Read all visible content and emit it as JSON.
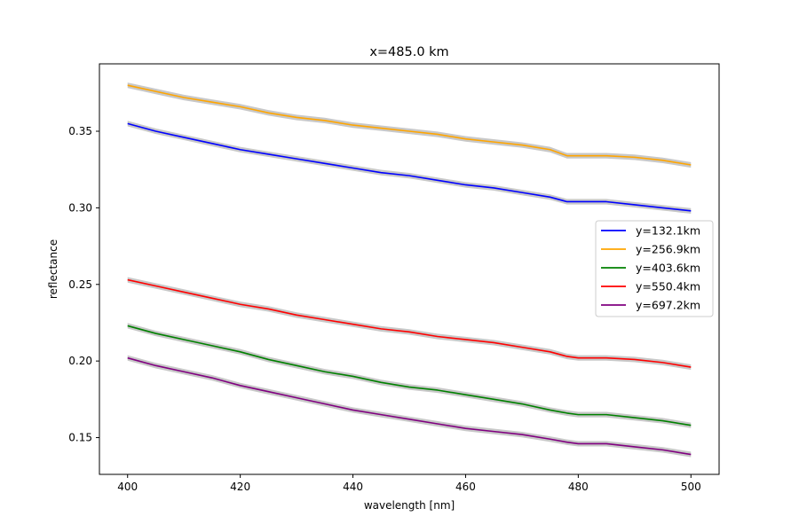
{
  "chart_data": {
    "type": "line",
    "title": "x=485.0 km",
    "xlabel": "wavelength [nm]",
    "ylabel": "reflectance",
    "xlim": [
      395,
      505
    ],
    "ylim": [
      0.126,
      0.394
    ],
    "xticks": [
      400,
      420,
      440,
      460,
      480,
      500
    ],
    "yticks": [
      0.15,
      0.2,
      0.25,
      0.3,
      0.35
    ],
    "grid": false,
    "legend_position": "center-right",
    "band_color": "#c8c8c8",
    "x": [
      400,
      405,
      410,
      415,
      420,
      425,
      430,
      435,
      440,
      445,
      450,
      455,
      460,
      465,
      470,
      475,
      478,
      480,
      485,
      490,
      495,
      500
    ],
    "series": [
      {
        "name": "y=132.1km",
        "color": "#0000ff",
        "values": [
          0.355,
          0.35,
          0.346,
          0.342,
          0.338,
          0.335,
          0.332,
          0.329,
          0.326,
          0.323,
          0.321,
          0.318,
          0.315,
          0.313,
          0.31,
          0.307,
          0.304,
          0.304,
          0.304,
          0.302,
          0.3,
          0.298
        ]
      },
      {
        "name": "y=256.9km",
        "color": "#ffa500",
        "values": [
          0.38,
          0.376,
          0.372,
          0.369,
          0.366,
          0.362,
          0.359,
          0.357,
          0.354,
          0.352,
          0.35,
          0.348,
          0.345,
          0.343,
          0.341,
          0.338,
          0.334,
          0.334,
          0.334,
          0.333,
          0.331,
          0.328
        ]
      },
      {
        "name": "y=403.6km",
        "color": "#008000",
        "values": [
          0.223,
          0.218,
          0.214,
          0.21,
          0.206,
          0.201,
          0.197,
          0.193,
          0.19,
          0.186,
          0.183,
          0.181,
          0.178,
          0.175,
          0.172,
          0.168,
          0.166,
          0.165,
          0.165,
          0.163,
          0.161,
          0.158
        ]
      },
      {
        "name": "y=550.4km",
        "color": "#ff0000",
        "values": [
          0.253,
          0.249,
          0.245,
          0.241,
          0.237,
          0.234,
          0.23,
          0.227,
          0.224,
          0.221,
          0.219,
          0.216,
          0.214,
          0.212,
          0.209,
          0.206,
          0.203,
          0.202,
          0.202,
          0.201,
          0.199,
          0.196
        ]
      },
      {
        "name": "y=697.2km",
        "color": "#800080",
        "values": [
          0.202,
          0.197,
          0.193,
          0.189,
          0.184,
          0.18,
          0.176,
          0.172,
          0.168,
          0.165,
          0.162,
          0.159,
          0.156,
          0.154,
          0.152,
          0.149,
          0.147,
          0.146,
          0.146,
          0.144,
          0.142,
          0.139
        ]
      }
    ]
  }
}
